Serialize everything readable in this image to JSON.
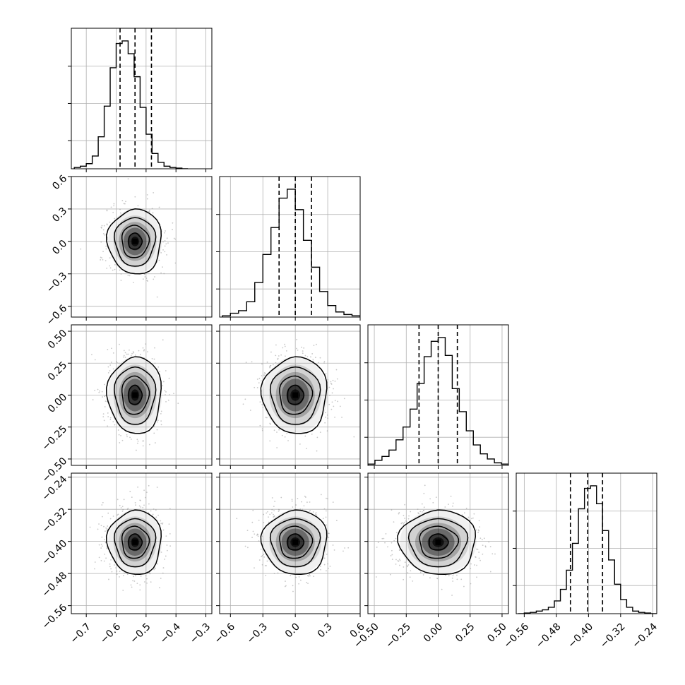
{
  "chart_data": {
    "type": "corner",
    "grid": true,
    "variables": [
      {
        "range": [
          -0.75,
          -0.28
        ],
        "ticks": [
          -0.7,
          -0.6,
          -0.5,
          -0.4,
          -0.3
        ],
        "tick_labels": [
          "−0.7",
          "−0.6",
          "−0.5",
          "−0.4",
          "−0.3"
        ],
        "quantiles": [
          -0.587,
          -0.537,
          -0.482
        ],
        "median": -0.537,
        "sigma": 0.045
      },
      {
        "range": [
          -0.7,
          0.6
        ],
        "ticks": [
          -0.6,
          -0.3,
          0.0,
          0.3,
          0.6
        ],
        "tick_labels": [
          "−0.6",
          "−0.3",
          "0.0",
          "0.3",
          "0.6"
        ],
        "quantiles": [
          -0.15,
          0.0,
          0.15
        ],
        "median": 0.0,
        "sigma": 0.15
      },
      {
        "range": [
          -0.55,
          0.55
        ],
        "ticks": [
          -0.5,
          -0.25,
          0.0,
          0.25,
          0.5
        ],
        "tick_labels": [
          "−0.50",
          "−0.25",
          "0.00",
          "0.25",
          "0.50"
        ],
        "quantiles": [
          -0.15,
          0.0,
          0.15
        ],
        "median": 0.0,
        "sigma": 0.15
      },
      {
        "range": [
          -0.58,
          -0.23
        ],
        "ticks": [
          -0.56,
          -0.48,
          -0.4,
          -0.32,
          -0.24
        ],
        "tick_labels": [
          "−0.56",
          "−0.48",
          "−0.40",
          "−0.32",
          "−0.24"
        ],
        "quantiles": [
          -0.445,
          -0.402,
          -0.365
        ],
        "median": -0.402,
        "sigma": 0.04
      }
    ],
    "histograms": [
      {
        "var": 0,
        "bins": [
          -0.74,
          -0.72,
          -0.7,
          -0.68,
          -0.66,
          -0.64,
          -0.62,
          -0.6,
          -0.58,
          -0.56,
          -0.54,
          -0.52,
          -0.5,
          -0.48,
          -0.46,
          -0.44,
          -0.42,
          -0.4,
          -0.38,
          -0.36
        ],
        "counts": [
          0.01,
          0.02,
          0.04,
          0.1,
          0.25,
          0.49,
          0.79,
          0.98,
          1.0,
          0.9,
          0.72,
          0.48,
          0.27,
          0.12,
          0.05,
          0.02,
          0.01,
          0.005,
          0.0
        ]
      },
      {
        "var": 1,
        "bins": [
          -0.675,
          -0.6,
          -0.525,
          -0.45,
          -0.375,
          -0.3,
          -0.225,
          -0.15,
          -0.075,
          0.0,
          0.075,
          0.15,
          0.225,
          0.3,
          0.375,
          0.45,
          0.525,
          0.6
        ],
        "counts": [
          0.01,
          0.03,
          0.05,
          0.12,
          0.27,
          0.49,
          0.7,
          0.93,
          1.0,
          0.84,
          0.6,
          0.39,
          0.2,
          0.09,
          0.04,
          0.02,
          0.01
        ]
      },
      {
        "var": 2,
        "bins": [
          -0.55,
          -0.495,
          -0.44,
          -0.385,
          -0.33,
          -0.275,
          -0.22,
          -0.165,
          -0.11,
          -0.055,
          0.0,
          0.055,
          0.11,
          0.165,
          0.22,
          0.275,
          0.33,
          0.385,
          0.44,
          0.495,
          0.55
        ],
        "counts": [
          0.01,
          0.04,
          0.07,
          0.12,
          0.2,
          0.3,
          0.44,
          0.64,
          0.85,
          0.97,
          1.0,
          0.86,
          0.6,
          0.42,
          0.27,
          0.16,
          0.09,
          0.05,
          0.02,
          0.01
        ]
      },
      {
        "var": 3,
        "bins": [
          -0.575,
          -0.56,
          -0.545,
          -0.53,
          -0.515,
          -0.5,
          -0.485,
          -0.47,
          -0.455,
          -0.44,
          -0.425,
          -0.41,
          -0.395,
          -0.38,
          -0.365,
          -0.35,
          -0.335,
          -0.32,
          -0.305,
          -0.29,
          -0.275,
          -0.26,
          -0.245,
          -0.23
        ],
        "counts": [
          0.0,
          0.005,
          0.01,
          0.02,
          0.03,
          0.05,
          0.1,
          0.19,
          0.34,
          0.55,
          0.82,
          0.98,
          1.0,
          0.86,
          0.65,
          0.42,
          0.23,
          0.11,
          0.05,
          0.02,
          0.01,
          0.005,
          0.0
        ]
      }
    ],
    "pairs": [
      {
        "x": 0,
        "y": 1,
        "center": [
          -0.537,
          0.0
        ],
        "spread": [
          0.045,
          0.15
        ]
      },
      {
        "x": 0,
        "y": 2,
        "center": [
          -0.537,
          0.0
        ],
        "spread": [
          0.045,
          0.15
        ]
      },
      {
        "x": 1,
        "y": 2,
        "center": [
          0.0,
          0.0
        ],
        "spread": [
          0.15,
          0.15
        ]
      },
      {
        "x": 0,
        "y": 3,
        "center": [
          -0.537,
          -0.402
        ],
        "spread": [
          0.045,
          0.04
        ]
      },
      {
        "x": 1,
        "y": 3,
        "center": [
          0.0,
          -0.402
        ],
        "spread": [
          0.15,
          0.04
        ]
      },
      {
        "x": 2,
        "y": 3,
        "center": [
          0.0,
          -0.402
        ],
        "spread": [
          0.15,
          0.04
        ]
      }
    ],
    "contour_levels_sigma": [
      0.5,
      1.0,
      1.5,
      2.0
    ],
    "colors": {
      "line": "#000000",
      "grid": "#b0b0b0",
      "scatter": "#9a9a9a",
      "density": "#000000"
    }
  }
}
